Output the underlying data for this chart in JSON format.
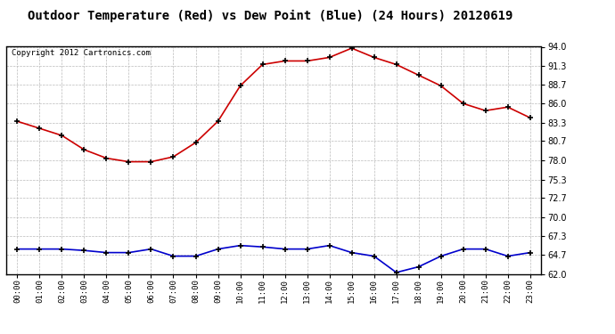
{
  "title": "Outdoor Temperature (Red) vs Dew Point (Blue) (24 Hours) 20120619",
  "copyright": "Copyright 2012 Cartronics.com",
  "hours": [
    "00:00",
    "01:00",
    "02:00",
    "03:00",
    "04:00",
    "05:00",
    "06:00",
    "07:00",
    "08:00",
    "09:00",
    "10:00",
    "11:00",
    "12:00",
    "13:00",
    "14:00",
    "15:00",
    "16:00",
    "17:00",
    "18:00",
    "19:00",
    "20:00",
    "21:00",
    "22:00",
    "23:00"
  ],
  "temp": [
    83.5,
    82.5,
    81.5,
    79.5,
    78.3,
    77.8,
    77.8,
    78.5,
    80.5,
    83.5,
    88.5,
    91.5,
    92.0,
    92.0,
    92.5,
    93.8,
    92.5,
    91.5,
    90.0,
    88.5,
    86.0,
    85.0,
    85.5,
    84.0
  ],
  "dew": [
    65.5,
    65.5,
    65.5,
    65.3,
    65.0,
    65.0,
    65.5,
    64.5,
    64.5,
    65.5,
    66.0,
    65.8,
    65.5,
    65.5,
    66.0,
    65.0,
    64.5,
    62.2,
    63.0,
    64.5,
    65.5,
    65.5,
    64.5,
    65.0
  ],
  "temp_color": "#cc0000",
  "dew_color": "#0000cc",
  "bg_color": "#ffffff",
  "grid_color": "#bbbbbb",
  "ylim_min": 62.0,
  "ylim_max": 94.0,
  "yticks": [
    62.0,
    64.7,
    67.3,
    70.0,
    72.7,
    75.3,
    78.0,
    80.7,
    83.3,
    86.0,
    88.7,
    91.3,
    94.0
  ],
  "title_fontsize": 10,
  "copyright_fontsize": 6.5
}
